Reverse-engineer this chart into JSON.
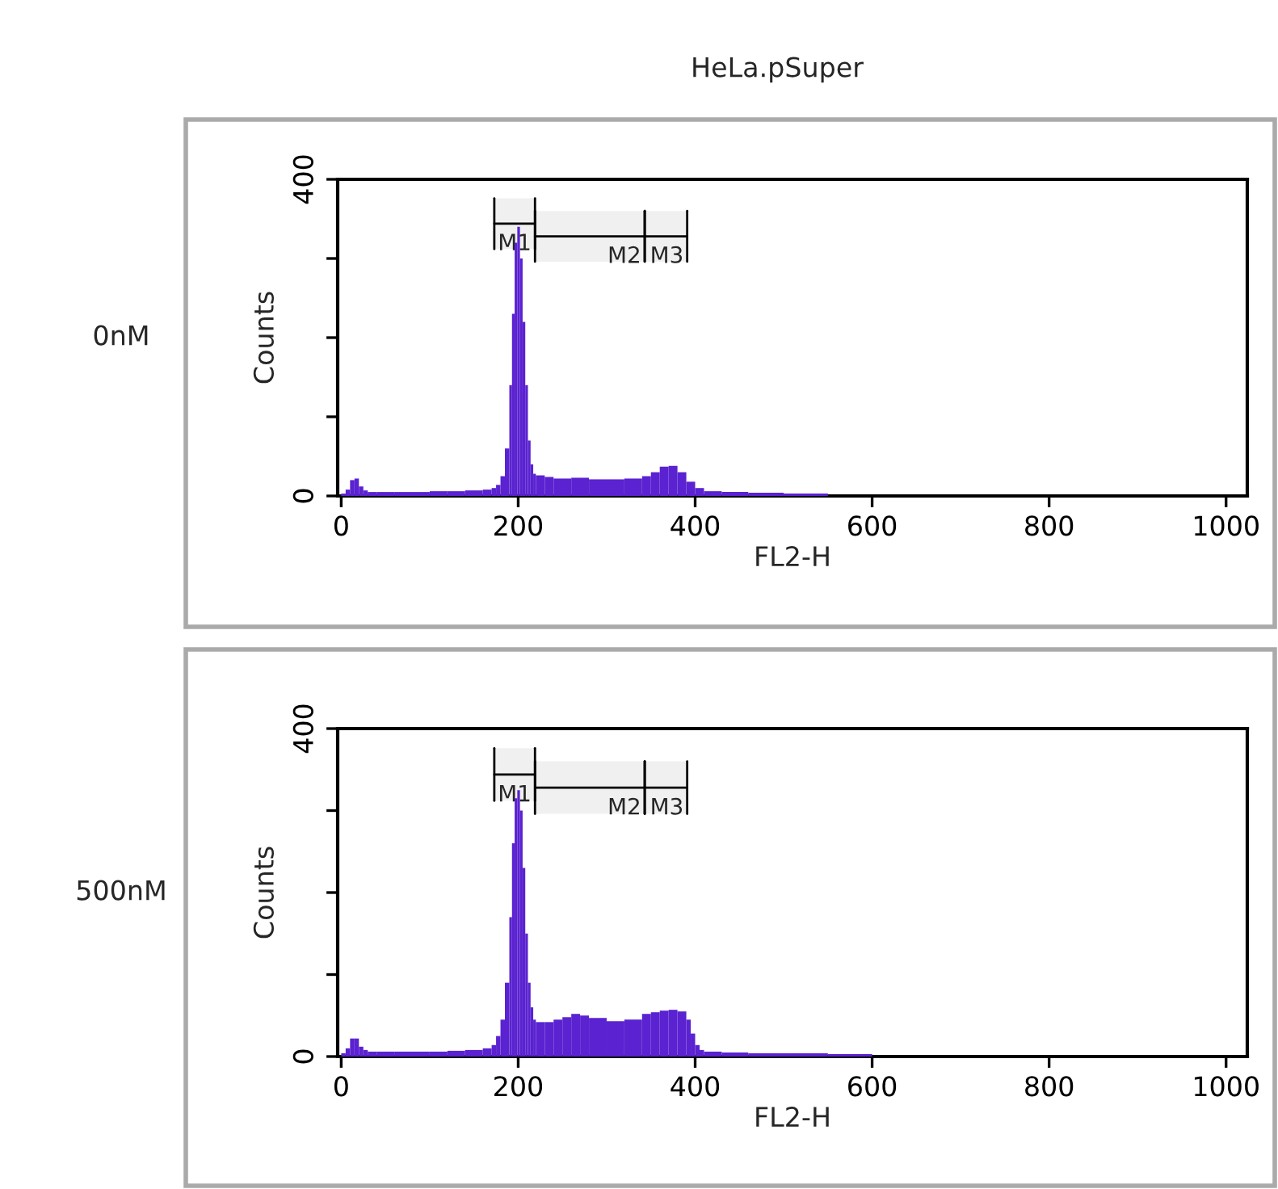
{
  "chart_data": [
    {
      "type": "histogram",
      "title": "HeLa.pSuper",
      "annotations": [
        "0nM"
      ],
      "xlabel": "FL2-H",
      "ylabel": "Counts",
      "color": "#5a22d0",
      "bins": [
        0,
        5,
        10,
        15,
        20,
        25,
        30,
        40,
        60,
        80,
        100,
        120,
        140,
        160,
        170,
        175,
        180,
        185,
        190,
        193,
        196,
        199,
        202,
        205,
        208,
        211,
        214,
        217,
        220,
        230,
        240,
        260,
        280,
        300,
        320,
        340,
        350,
        360,
        370,
        380,
        390,
        400,
        410,
        430,
        460,
        500,
        550
      ],
      "values": [
        3,
        8,
        20,
        22,
        12,
        7,
        5,
        5,
        5,
        5,
        6,
        6,
        7,
        8,
        10,
        14,
        25,
        60,
        140,
        230,
        320,
        340,
        300,
        220,
        140,
        70,
        40,
        28,
        26,
        24,
        22,
        23,
        21,
        21,
        22,
        25,
        30,
        37,
        38,
        30,
        18,
        10,
        6,
        5,
        4,
        3
      ],
      "xlim": [
        -4,
        1024
      ],
      "xticks": [
        0,
        200,
        400,
        600,
        800,
        1000
      ],
      "ylim": [
        0,
        400
      ],
      "yticks": [
        0,
        {
          "value": 100,
          "label": null
        },
        {
          "value": 200,
          "label": null
        },
        {
          "value": 300,
          "label": null
        },
        400
      ],
      "bands": [
        {
          "axis": "x",
          "from": 173,
          "to": 219,
          "label": "M1"
        },
        {
          "axis": "x",
          "from": 219,
          "to": 343,
          "label": "M2"
        },
        {
          "axis": "x",
          "from": 343,
          "to": 391,
          "label": "M3"
        }
      ]
    },
    {
      "type": "histogram",
      "annotations": [
        "500nM"
      ],
      "xlabel": "FL2-H",
      "ylabel": "Counts",
      "color": "#5a22d0",
      "bins": [
        0,
        5,
        10,
        15,
        20,
        25,
        30,
        40,
        60,
        80,
        100,
        120,
        140,
        160,
        170,
        175,
        180,
        185,
        190,
        193,
        196,
        199,
        202,
        205,
        208,
        211,
        214,
        217,
        220,
        230,
        240,
        250,
        260,
        270,
        280,
        300,
        320,
        340,
        350,
        360,
        370,
        380,
        390,
        395,
        400,
        405,
        410,
        430,
        460,
        500,
        550,
        600
      ],
      "values": [
        4,
        10,
        22,
        22,
        12,
        8,
        6,
        6,
        6,
        6,
        6,
        7,
        8,
        10,
        14,
        25,
        45,
        90,
        170,
        260,
        315,
        325,
        300,
        230,
        150,
        90,
        60,
        45,
        42,
        42,
        45,
        48,
        52,
        50,
        47,
        43,
        45,
        52,
        54,
        56,
        57,
        55,
        45,
        28,
        14,
        8,
        6,
        5,
        4,
        4,
        3
      ],
      "xlim": [
        -4,
        1024
      ],
      "xticks": [
        0,
        200,
        400,
        600,
        800,
        1000
      ],
      "ylim": [
        0,
        400
      ],
      "yticks": [
        0,
        {
          "value": 100,
          "label": null
        },
        {
          "value": 200,
          "label": null
        },
        {
          "value": 300,
          "label": null
        },
        400
      ],
      "bands": [
        {
          "axis": "x",
          "from": 173,
          "to": 219,
          "label": "M1"
        },
        {
          "axis": "x",
          "from": 219,
          "to": 343,
          "label": "M2"
        },
        {
          "axis": "x",
          "from": 343,
          "to": 391,
          "label": "M3"
        }
      ]
    }
  ]
}
